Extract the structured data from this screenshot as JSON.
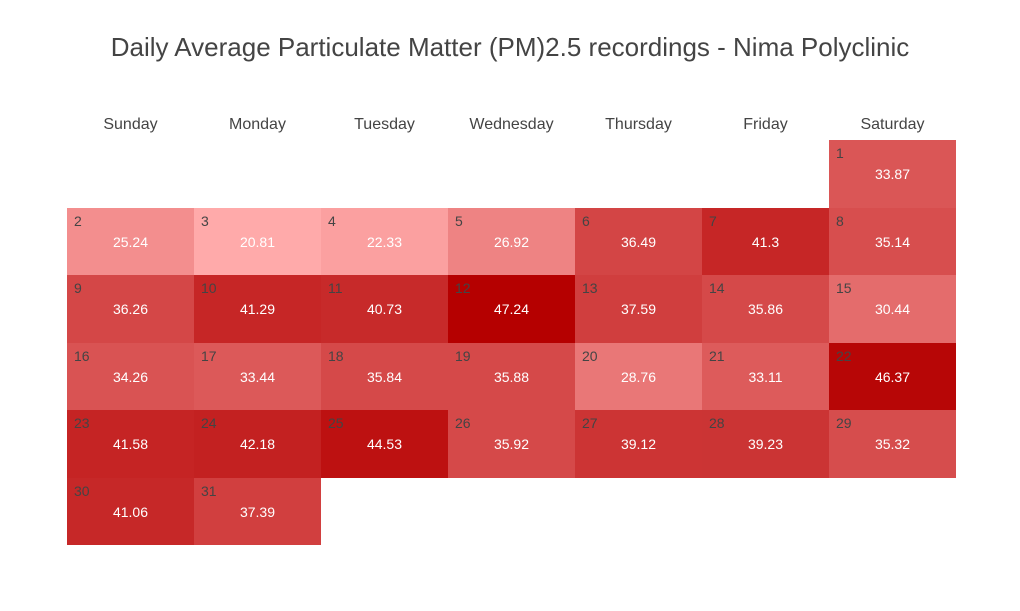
{
  "chart_data": {
    "type": "heatmap",
    "title": "Daily Average Particulate Matter (PM)2.5 recordings - Nima Polyclinic",
    "weekdays": [
      "Sunday",
      "Monday",
      "Tuesday",
      "Wednesday",
      "Thursday",
      "Friday",
      "Saturday"
    ],
    "first_weekday_index": 6,
    "days": [
      {
        "day": "1",
        "value": 33.87
      },
      {
        "day": "2",
        "value": 25.24
      },
      {
        "day": "3",
        "value": 20.81
      },
      {
        "day": "4",
        "value": 22.33
      },
      {
        "day": "5",
        "value": 26.92
      },
      {
        "day": "6",
        "value": 36.49
      },
      {
        "day": "7",
        "value": 41.3
      },
      {
        "day": "8",
        "value": 35.14
      },
      {
        "day": "9",
        "value": 36.26
      },
      {
        "day": "10",
        "value": 41.29
      },
      {
        "day": "11",
        "value": 40.73
      },
      {
        "day": "12",
        "value": 47.24
      },
      {
        "day": "13",
        "value": 37.59
      },
      {
        "day": "14",
        "value": 35.86
      },
      {
        "day": "15",
        "value": 30.44
      },
      {
        "day": "16",
        "value": 34.26
      },
      {
        "day": "17",
        "value": 33.44
      },
      {
        "day": "18",
        "value": 35.84
      },
      {
        "day": "19",
        "value": 35.88
      },
      {
        "day": "20",
        "value": 28.76
      },
      {
        "day": "21",
        "value": 33.11
      },
      {
        "day": "22",
        "value": 46.37
      },
      {
        "day": "23",
        "value": 41.58
      },
      {
        "day": "24",
        "value": 42.18
      },
      {
        "day": "25",
        "value": 44.53
      },
      {
        "day": "26",
        "value": 35.92
      },
      {
        "day": "27",
        "value": 39.12
      },
      {
        "day": "28",
        "value": 39.23
      },
      {
        "day": "29",
        "value": 35.32
      },
      {
        "day": "30",
        "value": 41.06
      },
      {
        "day": "31",
        "value": 37.39
      }
    ],
    "color_scale": {
      "low": "#ffaaaa",
      "high": "#b50000"
    },
    "value_text_color": "#ffffff",
    "day_text_color": "#444444"
  }
}
